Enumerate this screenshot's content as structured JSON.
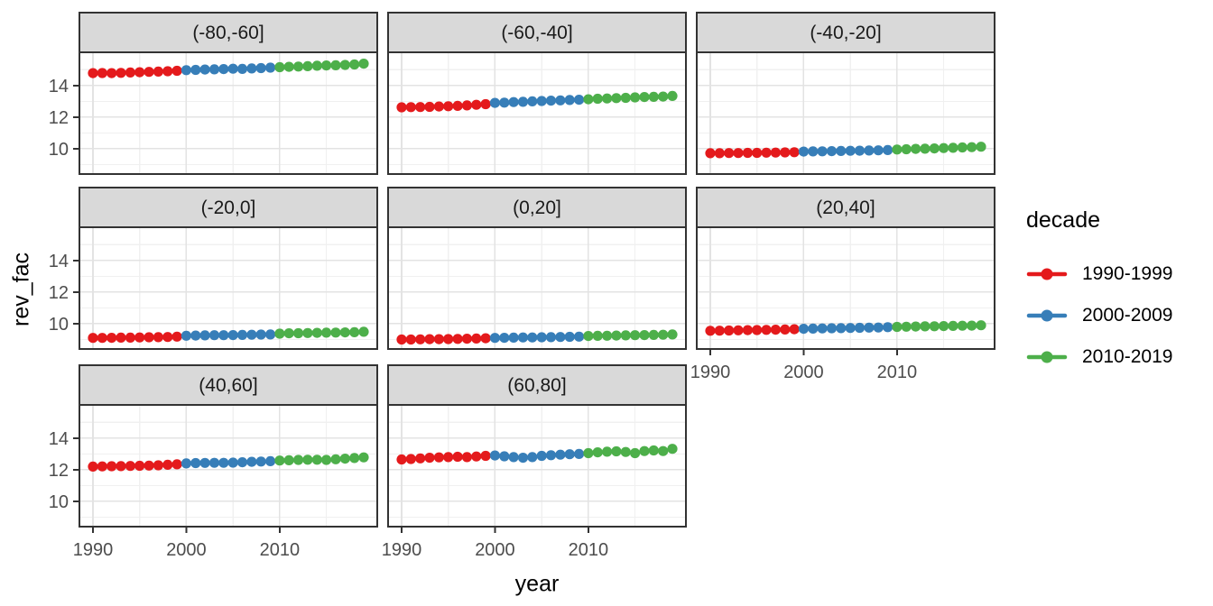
{
  "chart_data": {
    "type": "line",
    "title": "",
    "xlabel": "year",
    "ylabel": "rev_fac",
    "x_axis": {
      "ticks": [
        1990,
        2000,
        2010
      ],
      "minor_ticks": [
        1995,
        2005,
        2015
      ],
      "domain": [
        1988.55,
        2020.45
      ]
    },
    "y_axis": {
      "ticks": [
        10,
        12,
        14
      ],
      "minor_ticks": [
        9,
        11,
        13,
        15
      ],
      "domain": [
        8.4,
        16.1
      ]
    },
    "years": [
      1990,
      1991,
      1992,
      1993,
      1994,
      1995,
      1996,
      1997,
      1998,
      1999,
      2000,
      2001,
      2002,
      2003,
      2004,
      2005,
      2006,
      2007,
      2008,
      2009,
      2010,
      2011,
      2012,
      2013,
      2014,
      2015,
      2016,
      2017,
      2018,
      2019
    ],
    "legend": {
      "title": "decade",
      "position": "right",
      "entries": [
        {
          "label": "1990-1999",
          "color": "#E41A1C",
          "start_year": 1990,
          "end_year": 1999
        },
        {
          "label": "2000-2009",
          "color": "#377EB8",
          "start_year": 2000,
          "end_year": 2009
        },
        {
          "label": "2010-2019",
          "color": "#4DAF4A",
          "start_year": 2010,
          "end_year": 2019
        }
      ]
    },
    "facets": [
      {
        "label": "(-80,-60]",
        "values": [
          14.78,
          14.79,
          14.78,
          14.8,
          14.82,
          14.84,
          14.86,
          14.88,
          14.9,
          14.93,
          14.97,
          14.99,
          15.01,
          15.02,
          15.04,
          15.06,
          15.05,
          15.08,
          15.1,
          15.13,
          15.16,
          15.18,
          15.2,
          15.22,
          15.25,
          15.27,
          15.28,
          15.3,
          15.33,
          15.38
        ]
      },
      {
        "label": "(-60,-40]",
        "values": [
          12.62,
          12.63,
          12.64,
          12.65,
          12.67,
          12.69,
          12.71,
          12.74,
          12.78,
          12.82,
          12.9,
          12.92,
          12.95,
          12.97,
          13.0,
          13.02,
          13.04,
          13.06,
          13.08,
          13.1,
          13.13,
          13.16,
          13.18,
          13.2,
          13.22,
          13.25,
          13.27,
          13.28,
          13.3,
          13.34
        ]
      },
      {
        "label": "(-40,-20]",
        "values": [
          9.72,
          9.72,
          9.73,
          9.73,
          9.74,
          9.74,
          9.75,
          9.76,
          9.77,
          9.78,
          9.82,
          9.83,
          9.84,
          9.85,
          9.86,
          9.87,
          9.88,
          9.89,
          9.9,
          9.92,
          9.95,
          9.97,
          9.99,
          10.0,
          10.02,
          10.04,
          10.06,
          10.08,
          10.1,
          10.13
        ]
      },
      {
        "label": "(-20,0]",
        "values": [
          9.1,
          9.1,
          9.11,
          9.12,
          9.12,
          9.13,
          9.14,
          9.15,
          9.16,
          9.18,
          9.24,
          9.25,
          9.26,
          9.27,
          9.27,
          9.28,
          9.29,
          9.3,
          9.31,
          9.32,
          9.37,
          9.39,
          9.4,
          9.41,
          9.42,
          9.43,
          9.44,
          9.45,
          9.46,
          9.49
        ]
      },
      {
        "label": "(0,20]",
        "values": [
          9.0,
          9.0,
          9.01,
          9.02,
          9.02,
          9.03,
          9.04,
          9.05,
          9.06,
          9.08,
          9.1,
          9.11,
          9.12,
          9.13,
          9.13,
          9.14,
          9.15,
          9.16,
          9.17,
          9.18,
          9.22,
          9.23,
          9.24,
          9.25,
          9.26,
          9.27,
          9.28,
          9.29,
          9.3,
          9.32
        ]
      },
      {
        "label": "(20,40]",
        "values": [
          9.55,
          9.56,
          9.57,
          9.58,
          9.59,
          9.6,
          9.61,
          9.62,
          9.63,
          9.65,
          9.68,
          9.69,
          9.7,
          9.71,
          9.72,
          9.73,
          9.74,
          9.75,
          9.76,
          9.78,
          9.8,
          9.81,
          9.82,
          9.83,
          9.84,
          9.85,
          9.86,
          9.87,
          9.88,
          9.9
        ]
      },
      {
        "label": "(40,60]",
        "values": [
          12.2,
          12.21,
          12.22,
          12.23,
          12.24,
          12.25,
          12.26,
          12.28,
          12.31,
          12.34,
          12.4,
          12.42,
          12.43,
          12.44,
          12.44,
          12.45,
          12.47,
          12.5,
          12.52,
          12.54,
          12.58,
          12.6,
          12.62,
          12.63,
          12.63,
          12.62,
          12.66,
          12.7,
          12.74,
          12.78
        ]
      },
      {
        "label": "(60,80]",
        "values": [
          12.65,
          12.68,
          12.72,
          12.76,
          12.78,
          12.8,
          12.82,
          12.8,
          12.84,
          12.88,
          12.9,
          12.85,
          12.8,
          12.76,
          12.8,
          12.88,
          12.92,
          12.95,
          12.98,
          13.0,
          13.05,
          13.1,
          13.14,
          13.16,
          13.12,
          13.05,
          13.18,
          13.22,
          13.18,
          13.32
        ]
      }
    ],
    "style": {
      "strip_bg": "#D9D9D9",
      "border_color": "#333333",
      "grid_major": "#E3E3E3",
      "grid_minor": "#F0F0F0",
      "tick_label_color": "#4D4D4D",
      "panel_bg": "#FFFFFF"
    }
  }
}
